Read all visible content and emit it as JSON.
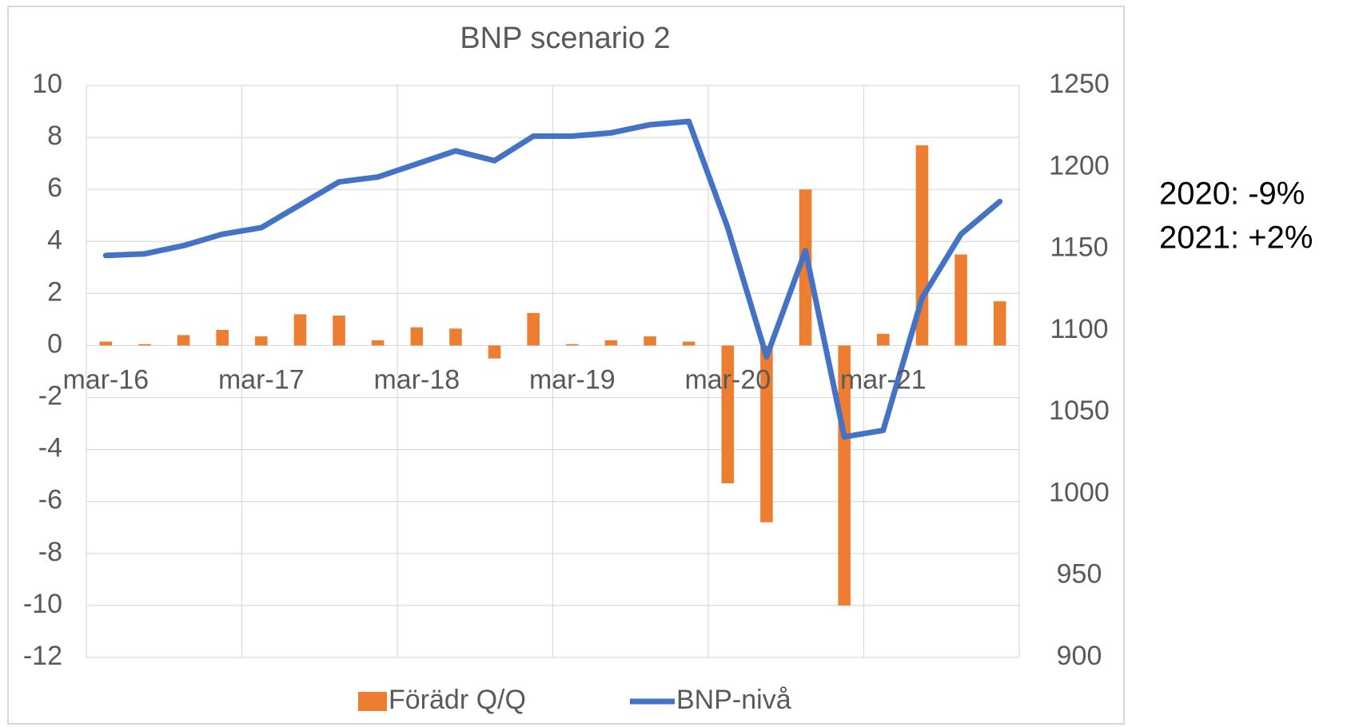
{
  "chart_data": {
    "type": "bar-line",
    "title": "BNP scenario 2",
    "categories": [
      "mar-16",
      null,
      null,
      null,
      "mar-17",
      null,
      null,
      null,
      "mar-18",
      null,
      null,
      null,
      "mar-19",
      null,
      null,
      null,
      "mar-20",
      null,
      null,
      null,
      "mar-21",
      null,
      null,
      null
    ],
    "series": [
      {
        "name": "Förädr Q/Q",
        "type": "bar",
        "color": "#ed7d31",
        "axis": "y",
        "values": [
          0.15,
          0.05,
          0.4,
          0.6,
          0.35,
          1.2,
          1.15,
          0.2,
          0.7,
          0.65,
          -0.5,
          1.25,
          0.05,
          0.2,
          0.35,
          0.15,
          -5.3,
          -6.8,
          6.0,
          -10,
          0.45,
          7.7,
          3.5,
          1.7
        ]
      },
      {
        "name": "BNP-nivå",
        "type": "line",
        "color": "#4472c4",
        "axis": "y2",
        "values": [
          1146,
          1147,
          1152,
          1159,
          1163,
          1177,
          1191,
          1194,
          1202,
          1210,
          1204,
          1219,
          1219,
          1221,
          1226,
          1228,
          1163,
          1084,
          1149,
          1035,
          1039,
          1120,
          1159,
          1179
        ]
      }
    ],
    "ylim": [
      -12,
      10
    ],
    "yticks": [
      -12,
      -10,
      -8,
      -6,
      -4,
      -2,
      0,
      2,
      4,
      6,
      8,
      10
    ],
    "y2lim": [
      900,
      1250
    ],
    "y2ticks": [
      900,
      950,
      1000,
      1050,
      1100,
      1150,
      1200,
      1250
    ],
    "grid": true,
    "legend": "bottom",
    "annotations": [
      "2020: -9%",
      "2021: +2%"
    ]
  }
}
